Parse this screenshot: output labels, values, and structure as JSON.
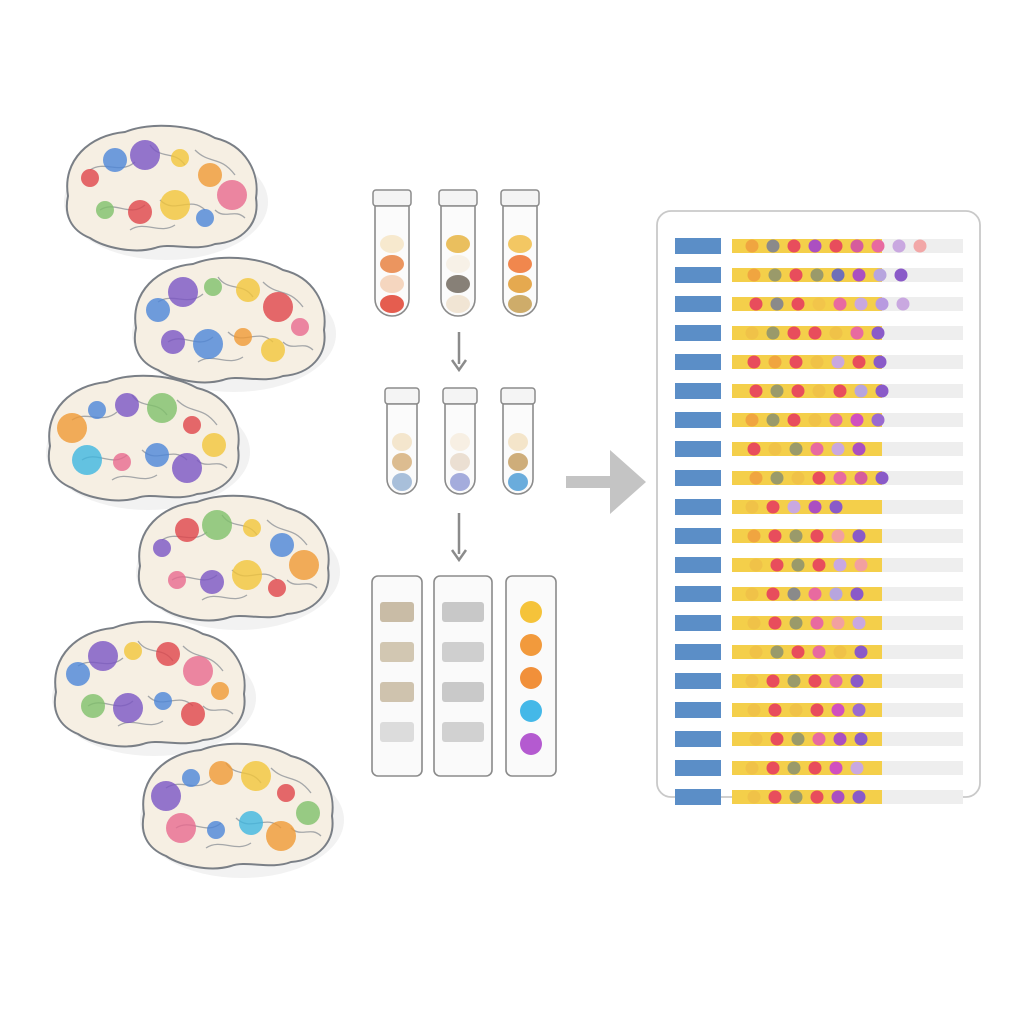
{
  "palette": {
    "red": "#e0454a",
    "blue": "#4c86d8",
    "purple": "#7b55c4",
    "yellow": "#f2c53a",
    "orange": "#f09a35",
    "green": "#7fc06a",
    "pink": "#e86a8f",
    "cyan": "#3fb7e0",
    "brainFill": "#f6efe3",
    "brainOutline": "#7a7f86",
    "arrow": "#8b8b8b",
    "bigArrow": "#c4c4c4",
    "rowLabel": "#5b8ec7",
    "rowBar": "#eeeeee",
    "rowBarYellow": "#f4cf4a",
    "panelBorder": "#c9c9c9"
  },
  "brains": [
    {
      "spots": [
        "red",
        "blue",
        "purple",
        "yellow",
        "orange",
        "pink",
        "green",
        "red",
        "yellow",
        "blue"
      ]
    },
    {
      "spots": [
        "blue",
        "purple",
        "green",
        "yellow",
        "red",
        "pink",
        "purple",
        "blue",
        "orange",
        "yellow"
      ]
    },
    {
      "spots": [
        "orange",
        "blue",
        "purple",
        "green",
        "red",
        "yellow",
        "cyan",
        "pink",
        "blue",
        "purple"
      ]
    },
    {
      "spots": [
        "purple",
        "red",
        "green",
        "yellow",
        "blue",
        "orange",
        "pink",
        "purple",
        "yellow",
        "red"
      ]
    },
    {
      "spots": [
        "blue",
        "purple",
        "yellow",
        "red",
        "pink",
        "orange",
        "green",
        "purple",
        "blue",
        "red"
      ]
    },
    {
      "spots": [
        "purple",
        "blue",
        "orange",
        "yellow",
        "red",
        "green",
        "pink",
        "blue",
        "cyan",
        "orange"
      ]
    }
  ],
  "tubes_top": [
    {
      "layers": [
        "#f6e7c9",
        "#e98a4e",
        "#f4d2b8",
        "#e24b3c"
      ]
    },
    {
      "layers": [
        "#e8b84d",
        "#f6f0e4",
        "#7a7268",
        "#efe2cf"
      ]
    },
    {
      "layers": [
        "#f2c152",
        "#f07a3a",
        "#e2a03c",
        "#c9a35a"
      ]
    }
  ],
  "tubes_mid": [
    {
      "layers": [
        "#f3e3c8",
        "#d8b584",
        "#9fb8d6"
      ]
    },
    {
      "layers": [
        "#f6ede0",
        "#e9dccd",
        "#9aa3d8"
      ]
    },
    {
      "layers": [
        "#f3e2c4",
        "#c9a46c",
        "#5aa3d8"
      ]
    }
  ],
  "strips": [
    {
      "bands": [
        "#c9bca6",
        "#d2c7b2",
        "#cfc3ae",
        "#dcdcdc"
      ]
    },
    {
      "bands": [
        "#c8c8c8",
        "#cfcfcf",
        "#c9c9c9",
        "#d1d1d1"
      ]
    },
    {
      "bands": [
        "#f5c33a",
        "#f29a3c",
        "#f1903a",
        "#44b8e8",
        "#b45ad0"
      ]
    }
  ],
  "heatmap_rows": [
    {
      "dots": [
        "#f0a540",
        "#8a8a8a",
        "#e84d5c",
        "#ab4fc1",
        "#e84d5c",
        "#d65c9c",
        "#e86aa0",
        "#c9a8e0",
        "#f2a7a7"
      ]
    },
    {
      "dots": [
        "#f0a540",
        "#9a9a6a",
        "#e84d5c",
        "#9a9a6a",
        "#6f6fb8",
        "#ab4fc1",
        "#b7a5de",
        "#8a5ac8"
      ]
    },
    {
      "dots": [
        "#e84d5c",
        "#8a8a8a",
        "#e84d5c",
        "#f2c54a",
        "#e86aa0",
        "#c9a8e0",
        "#b89ae0",
        "#c9a8e0"
      ]
    },
    {
      "dots": [
        "#f0c248",
        "#9a9a6a",
        "#e84d5c",
        "#e84d5c",
        "#f0c248",
        "#e86aa0",
        "#8a5ac8"
      ]
    },
    {
      "dots": [
        "#e84d5c",
        "#f0a540",
        "#e84d5c",
        "#f0c248",
        "#c9a8e0",
        "#e84d5c",
        "#8a5ac8"
      ]
    },
    {
      "dots": [
        "#e84d5c",
        "#9a9a6a",
        "#e84d5c",
        "#f0c248",
        "#e84d5c",
        "#b7a5de",
        "#8a5ac8"
      ]
    },
    {
      "dots": [
        "#f0a540",
        "#9a9a6a",
        "#e84d5c",
        "#f0c248",
        "#e86aa0",
        "#d14fbf",
        "#9a6ad0"
      ]
    },
    {
      "dots": [
        "#e84d5c",
        "#f0c248",
        "#9a9a6a",
        "#e86aa0",
        "#c9a8e0",
        "#ab4fc1"
      ]
    },
    {
      "dots": [
        "#f0a540",
        "#9a9a6a",
        "#f0c248",
        "#e84d5c",
        "#e86aa0",
        "#d65c9c",
        "#8a5ac8"
      ]
    },
    {
      "dots": [
        "#f0c248",
        "#e84d5c",
        "#c9a8e0",
        "#ab4fc1",
        "#8a5ac8"
      ]
    },
    {
      "dots": [
        "#f0a540",
        "#e84d5c",
        "#9a9a6a",
        "#e84d5c",
        "#f2a0a0",
        "#8a5ac8"
      ]
    },
    {
      "dots": [
        "#f0c248",
        "#e84d5c",
        "#9a9a6a",
        "#e84d5c",
        "#c9a8e0",
        "#f2a0a0"
      ]
    },
    {
      "dots": [
        "#f0c248",
        "#e84d5c",
        "#8a8a8a",
        "#e86aa0",
        "#b7a5de",
        "#8a5ac8"
      ]
    },
    {
      "dots": [
        "#f0c248",
        "#e84d5c",
        "#9a9a6a",
        "#e86aa0",
        "#f2a0a0",
        "#c9a8e0"
      ]
    },
    {
      "dots": [
        "#f0c248",
        "#9a9a6a",
        "#e84d5c",
        "#e86aa0",
        "#f0c248",
        "#8a5ac8"
      ]
    },
    {
      "dots": [
        "#f0c248",
        "#e84d5c",
        "#9a9a6a",
        "#e84d5c",
        "#e86aa0",
        "#8a5ac8"
      ]
    },
    {
      "dots": [
        "#f0c248",
        "#e84d5c",
        "#f0c248",
        "#e84d5c",
        "#d14fbf",
        "#9a6ad0"
      ]
    },
    {
      "dots": [
        "#f0c248",
        "#e84d5c",
        "#9a9a6a",
        "#e86aa0",
        "#ab4fc1",
        "#8a5ac8"
      ]
    },
    {
      "dots": [
        "#f0c248",
        "#e84d5c",
        "#9a9a6a",
        "#e84d5c",
        "#d14fbf",
        "#c9a8e0"
      ]
    },
    {
      "dots": [
        "#f0c248",
        "#e84d5c",
        "#9a9a6a",
        "#e84d5c",
        "#ab4fc1",
        "#8a5ac8"
      ]
    }
  ]
}
